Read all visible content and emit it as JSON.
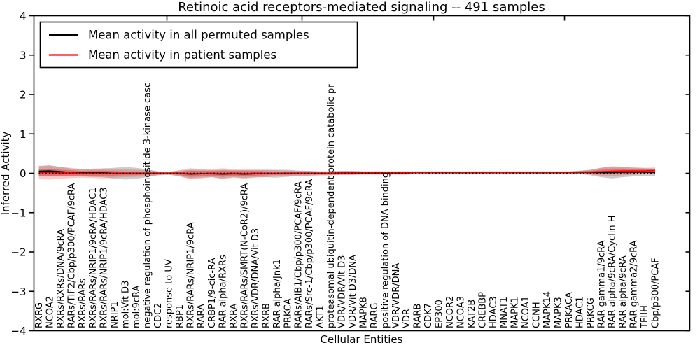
{
  "figure": {
    "title": "Retinoic acid receptors-mediated signaling -- 491 samples"
  },
  "legend": {
    "items": [
      {
        "label": "Mean activity in all permuted samples",
        "color": "#000000"
      },
      {
        "label": "Mean activity in patient samples",
        "color": "#ff0000"
      }
    ]
  },
  "colors": {
    "permuted_line": "#000000",
    "patient_line": "#ff0000",
    "patient_band": "#e63333",
    "permuted_band": "#999999",
    "axis": "#000000",
    "background": "#ffffff"
  },
  "chart_data": {
    "type": "line",
    "title": "Retinoic acid receptors-mediated signaling -- 491 samples",
    "xlabel": "Cellular Entities",
    "ylabel": "Inferred Activity",
    "ylim": [
      -4,
      4
    ],
    "yticks": [
      4,
      3,
      2,
      1,
      0,
      -1,
      -2,
      -3,
      -4
    ],
    "ytick_labels": [
      "4",
      "3",
      "2",
      "1",
      "0",
      "−1",
      "−2",
      "−3",
      "−4"
    ],
    "grid": false,
    "legend_position": "upper left",
    "categories": [
      "RXRG",
      "NCOA2",
      "RXRs/RXRs/DNA/9cRA",
      "RARs/TIF2/Cbp/p300/PCAF/9cRA",
      "RXRs/RARs",
      "RXRs/RARs/NRIP1/9cRA/HDAC1",
      "RXRs/RARs/NRIP1/9cRA/HDAC3",
      "NRIP1",
      "mol:Vit D3",
      "mol:9cRA",
      "negative regulation of phosphoinositide 3-kinase casc",
      "CDC2",
      "response to UV",
      "RBP1",
      "RXRs/RARs/NRIP1/9cRA",
      "RARA",
      "CRBP1/9-cic-RA",
      "RAR alpha/RXRs",
      "RXRA",
      "RXRs/RARs/SMRT(N-CoR2)/9cRA",
      "RXRs/VDR/DNA/Vit D3",
      "RXRB",
      "RAR alpha/Jnk1",
      "PRKCA",
      "RARs/AIB1/Cbp/p300/PCAF/9cRA",
      "RARs/Src-1/Cbp/p300/PCAF/9cRA",
      "AKT1",
      "proteasomal ubiquitin-dependent protein catabolic pr",
      "VDR/VDR/Vit D3",
      "VDR/Vit D3/DNA",
      "MAPK8",
      "RARG",
      "positive regulation of DNA binding",
      "VDR/VDR/DNA",
      "VDR",
      "RARB",
      "CDK7",
      "EP300",
      "NCOR2",
      "NCOA3",
      "KAT2B",
      "CREBBP",
      "HDAC3",
      "MNAT1",
      "MAPK1",
      "NCOA1",
      "CCNH",
      "MAPK14",
      "MAPK3",
      "PRKACA",
      "HDAC1",
      "PRKCG",
      "RAR gamma1/9cRA",
      "RAR alpha/9cRA/Cyclin H",
      "RAR alpha/9cRA",
      "RAR gamma2/9cRA",
      "TFIIH",
      "Cbp/p300/PCAF"
    ],
    "series": [
      {
        "name": "Mean activity in all permuted samples",
        "color": "#000000",
        "style": "solid",
        "values": [
          0.05,
          0.06,
          0.04,
          0.02,
          0.01,
          0.01,
          0.01,
          0.0,
          0.0,
          0.0,
          0.0,
          0.0,
          0.0,
          0.0,
          -0.02,
          -0.01,
          -0.01,
          -0.02,
          -0.01,
          -0.02,
          -0.01,
          -0.01,
          -0.01,
          0.0,
          0.0,
          0.0,
          0.0,
          0.0,
          0.01,
          0.01,
          0.01,
          0.01,
          0.01,
          0.01,
          0.01,
          0.02,
          0.02,
          0.02,
          0.02,
          0.02,
          0.02,
          0.02,
          0.02,
          0.02,
          0.02,
          0.02,
          0.02,
          0.02,
          0.02,
          0.02,
          0.02,
          0.02,
          0.02,
          0.02,
          0.03,
          0.03,
          0.03,
          0.02
        ]
      },
      {
        "name": "Mean activity in patient samples",
        "color": "#ff0000",
        "style": "solid",
        "values": [
          0.02,
          0.02,
          0.01,
          0.01,
          0.0,
          0.0,
          0.0,
          0.0,
          0.0,
          0.0,
          0.0,
          0.0,
          0.0,
          0.0,
          -0.01,
          -0.01,
          0.0,
          -0.01,
          0.0,
          -0.01,
          0.0,
          0.0,
          0.0,
          0.0,
          0.0,
          0.0,
          0.0,
          0.0,
          0.01,
          0.01,
          0.01,
          0.01,
          0.01,
          0.01,
          0.01,
          0.02,
          0.02,
          0.02,
          0.02,
          0.02,
          0.02,
          0.02,
          0.02,
          0.02,
          0.02,
          0.02,
          0.02,
          0.02,
          0.02,
          0.02,
          0.03,
          0.03,
          0.04,
          0.05,
          0.06,
          0.06,
          0.06,
          0.07
        ]
      }
    ],
    "bands": [
      {
        "name": "permuted-confidence-band",
        "center_series": 0,
        "color": "#999999",
        "opacity": 0.5,
        "half_widths": [
          0.13,
          0.14,
          0.12,
          0.1,
          0.09,
          0.1,
          0.11,
          0.14,
          0.16,
          0.14,
          0.1,
          0.05,
          0.04,
          0.07,
          0.11,
          0.1,
          0.09,
          0.11,
          0.09,
          0.1,
          0.09,
          0.09,
          0.1,
          0.09,
          0.07,
          0.06,
          0.05,
          0.05,
          0.05,
          0.05,
          0.04,
          0.04,
          0.04,
          0.04,
          0.04,
          0.03,
          0.03,
          0.03,
          0.03,
          0.03,
          0.03,
          0.03,
          0.03,
          0.03,
          0.03,
          0.03,
          0.03,
          0.03,
          0.03,
          0.03,
          0.04,
          0.07,
          0.12,
          0.15,
          0.13,
          0.11,
          0.1,
          0.1
        ]
      },
      {
        "name": "patient-confidence-band-outer",
        "center_series": 1,
        "color": "#e63333",
        "opacity": 0.25,
        "half_widths": [
          0.17,
          0.18,
          0.15,
          0.13,
          0.11,
          0.12,
          0.13,
          0.11,
          0.1,
          0.09,
          0.08,
          0.05,
          0.03,
          0.08,
          0.14,
          0.12,
          0.1,
          0.14,
          0.11,
          0.13,
          0.11,
          0.1,
          0.08,
          0.07,
          0.06,
          0.06,
          0.05,
          0.05,
          0.05,
          0.05,
          0.04,
          0.04,
          0.04,
          0.04,
          0.04,
          0.03,
          0.03,
          0.03,
          0.03,
          0.03,
          0.03,
          0.03,
          0.03,
          0.03,
          0.03,
          0.03,
          0.03,
          0.03,
          0.03,
          0.03,
          0.04,
          0.06,
          0.1,
          0.13,
          0.11,
          0.1,
          0.08,
          0.08
        ]
      },
      {
        "name": "patient-confidence-band-inner",
        "center_series": 1,
        "color": "#e63333",
        "opacity": 0.45,
        "half_widths": [
          0.09,
          0.1,
          0.08,
          0.07,
          0.06,
          0.07,
          0.07,
          0.06,
          0.05,
          0.05,
          0.04,
          0.03,
          0.02,
          0.04,
          0.08,
          0.07,
          0.06,
          0.08,
          0.06,
          0.07,
          0.06,
          0.05,
          0.04,
          0.04,
          0.03,
          0.03,
          0.03,
          0.03,
          0.03,
          0.03,
          0.02,
          0.02,
          0.02,
          0.02,
          0.02,
          0.02,
          0.02,
          0.02,
          0.02,
          0.02,
          0.02,
          0.02,
          0.02,
          0.02,
          0.02,
          0.02,
          0.02,
          0.02,
          0.02,
          0.02,
          0.02,
          0.03,
          0.05,
          0.07,
          0.06,
          0.05,
          0.04,
          0.04
        ]
      }
    ],
    "zero_line": {
      "value": 0,
      "style": "dotted",
      "color": "#000000"
    }
  }
}
